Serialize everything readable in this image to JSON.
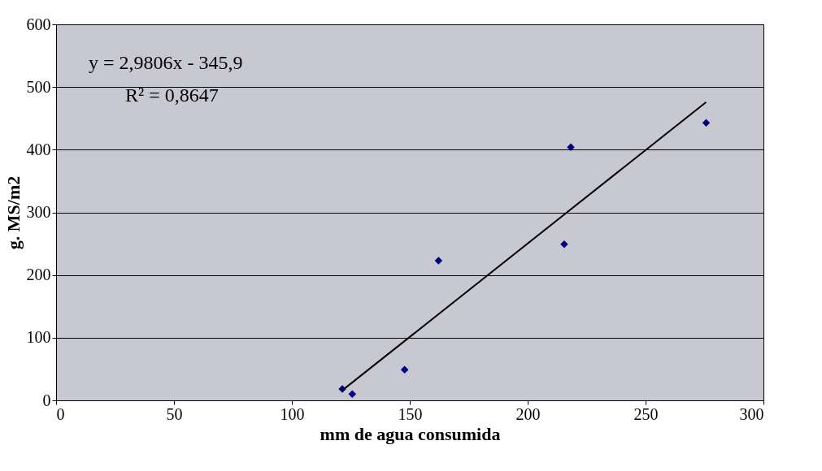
{
  "chart_data": {
    "type": "scatter",
    "xlabel": "mm de agua consumida",
    "ylabel": "g. MS/m2",
    "xlim": [
      0,
      300
    ],
    "xticks": [
      0,
      50,
      100,
      150,
      200,
      250,
      300
    ],
    "ylim": [
      0,
      600
    ],
    "yticks": [
      0,
      100,
      200,
      300,
      400,
      500,
      600
    ],
    "grid": "y",
    "annotations": [
      "y = 2,9806x - 345,9",
      "R² = 0,8647"
    ],
    "series": [
      {
        "color": "#000080",
        "marker": "diamond",
        "x": [
          121.4,
          125.6,
          147.8,
          162.2,
          215.5,
          218.3,
          275.7
        ],
        "values": [
          18,
          10,
          49,
          223,
          249,
          404,
          443
        ]
      },
      {
        "type": "line",
        "color": "#000000",
        "x": [
          121.4,
          275.7
        ],
        "values": [
          16,
          476
        ],
        "line_style": "solid",
        "marker": "none"
      }
    ]
  }
}
